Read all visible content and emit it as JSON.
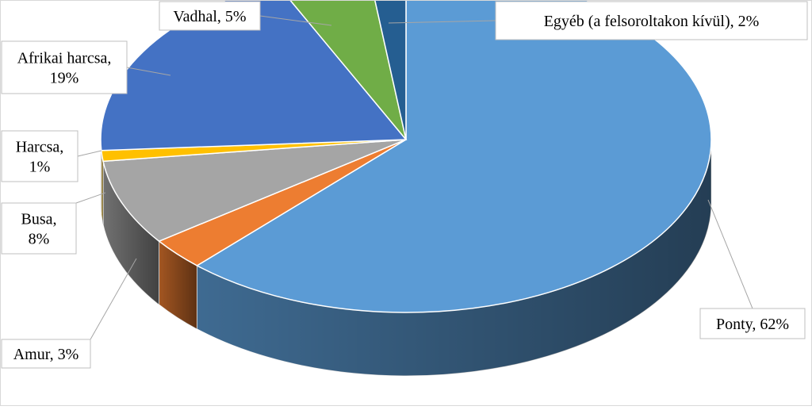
{
  "chart_data": {
    "type": "pie",
    "title": "",
    "slices": [
      {
        "label": "Ponty",
        "value": 62,
        "display": "Ponty, 62%",
        "color": "#5b9bd5"
      },
      {
        "label": "Amur",
        "value": 3,
        "display": "Amur, 3%",
        "color": "#ed7d31"
      },
      {
        "label": "Busa",
        "value": 8,
        "display": "Busa,\n8%",
        "color": "#a5a5a5"
      },
      {
        "label": "Harcsa",
        "value": 1,
        "display": "Harcsa,\n1%",
        "color": "#ffc000"
      },
      {
        "label": "Afrikai harcsa",
        "value": 19,
        "display": "Afrikai harcsa,\n19%",
        "color": "#4472c4"
      },
      {
        "label": "Vadhal",
        "value": 5,
        "display": "Vadhal, 5%",
        "color": "#70ad47"
      },
      {
        "label": "Egyéb (a felsoroltakon kívül)",
        "value": 2,
        "display": "Egyéb (a felsoroltakon kívül), 2%",
        "color": "#255e91"
      }
    ],
    "start_angle_deg": -90,
    "direction": "clockwise",
    "style": "3d",
    "legend": "none",
    "data_labels": "outside with leader lines"
  }
}
